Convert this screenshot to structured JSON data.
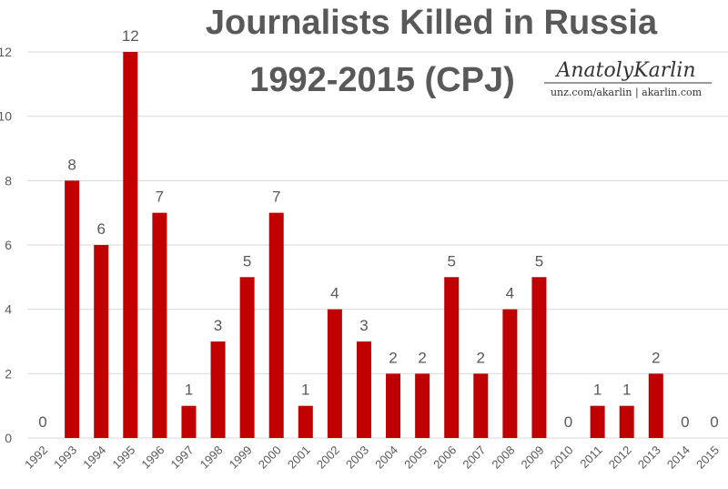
{
  "chart_data": {
    "type": "bar",
    "title_line1": "Journalists Killed in Russia",
    "title_line2": "1992-2015 (CPJ)",
    "categories": [
      "1992",
      "1993",
      "1994",
      "1995",
      "1996",
      "1997",
      "1998",
      "1999",
      "2000",
      "2001",
      "2002",
      "2003",
      "2004",
      "2005",
      "2006",
      "2007",
      "2008",
      "2009",
      "2010",
      "2011",
      "2012",
      "2013",
      "2014",
      "2015"
    ],
    "values": [
      0,
      8,
      6,
      12,
      7,
      1,
      3,
      5,
      7,
      1,
      4,
      3,
      2,
      2,
      5,
      2,
      4,
      5,
      0,
      1,
      1,
      2,
      0,
      0
    ],
    "ylim": [
      0,
      12
    ],
    "yticks": [
      0,
      2,
      4,
      6,
      8,
      10,
      12
    ],
    "xlabel": "",
    "ylabel": "",
    "grid": true,
    "legend": "none",
    "bar_color": "#c00000",
    "grid_color": "#d9d9d9",
    "text_color": "#595959"
  },
  "branding": {
    "name": "AnatolyKarlin",
    "site": "unz.com/akarlin | akarlin.com"
  }
}
